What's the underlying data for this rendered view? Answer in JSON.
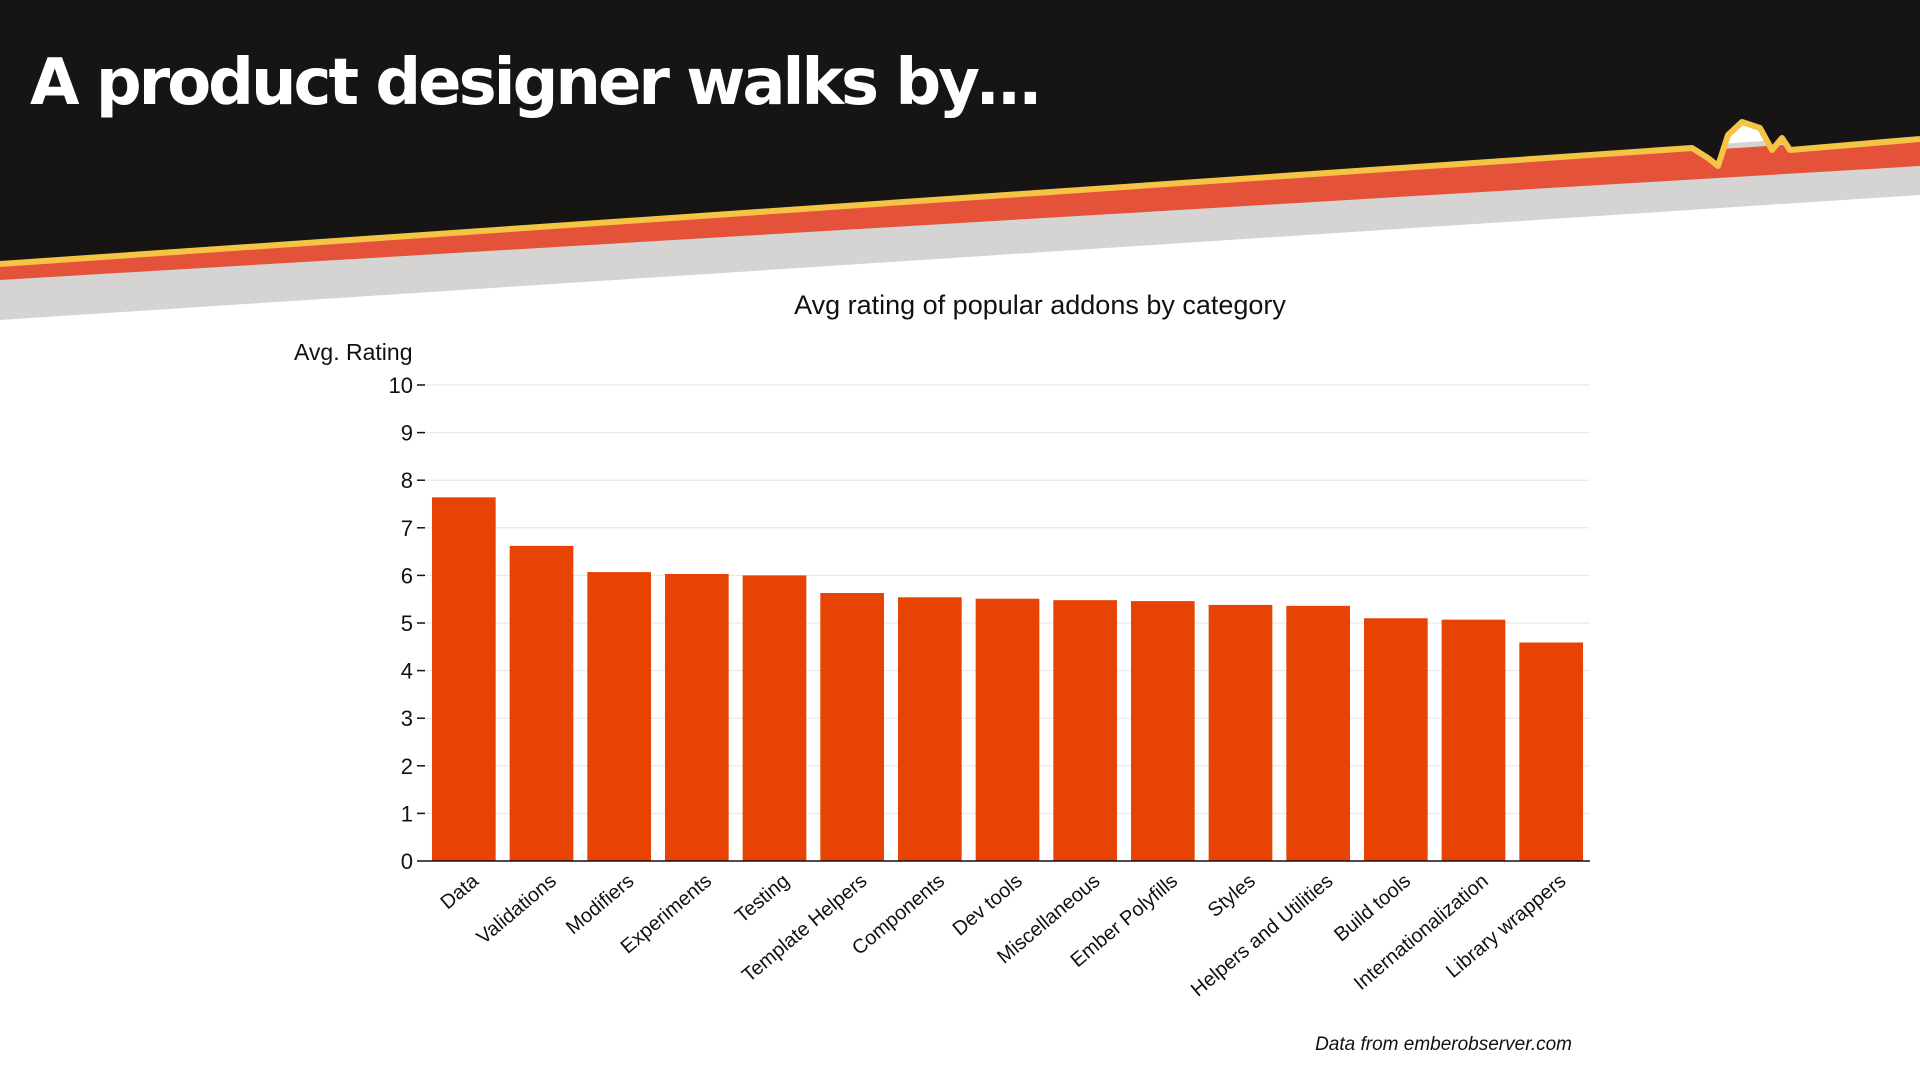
{
  "slide": {
    "title": "A product designer walks by…",
    "source_note": "Data from emberobserver.com"
  },
  "colors": {
    "banner_dark": "#161514",
    "stripe_yellow": "#f5c445",
    "stripe_red": "#e4523a",
    "stripe_gray": "#d5d4d2",
    "bar": "#e64304",
    "grid": "#e6e6e6",
    "axis": "#111111"
  },
  "chart_data": {
    "type": "bar",
    "title": "Avg rating of popular addons by category",
    "ylabel": "Avg. Rating",
    "xlabel": "",
    "ylim": [
      0,
      10
    ],
    "yticks": [
      0,
      1,
      2,
      3,
      4,
      5,
      6,
      7,
      8,
      9,
      10
    ],
    "grid": true,
    "categories": [
      "Data",
      "Validations",
      "Modifiers",
      "Experiments",
      "Testing",
      "Template Helpers",
      "Components",
      "Dev tools",
      "Miscellaneous",
      "Ember Polyfills",
      "Styles",
      "Helpers and Utilities",
      "Build tools",
      "Internationalization",
      "Library wrappers"
    ],
    "values": [
      7.64,
      6.62,
      6.07,
      6.03,
      6.0,
      5.63,
      5.54,
      5.51,
      5.48,
      5.46,
      5.38,
      5.36,
      5.1,
      5.07,
      4.59
    ]
  }
}
